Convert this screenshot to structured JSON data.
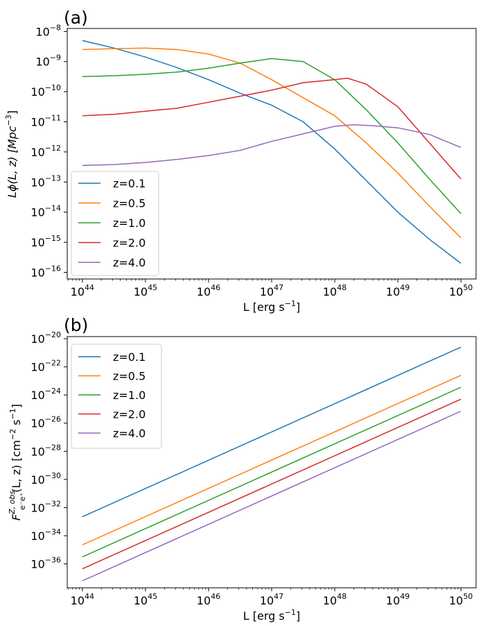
{
  "colors": {
    "z=0.1": "#1f77b4",
    "z=0.5": "#ff7f0e",
    "z=1.0": "#2ca02c",
    "z=2.0": "#d62728",
    "z=4.0": "#9467bd"
  },
  "chart_data": [
    {
      "type": "line",
      "panel_label": "(a)",
      "xscale": "log",
      "yscale": "log",
      "xlim_log10": [
        43.76,
        50.24
      ],
      "ylim_log10": [
        -16.22,
        -7.9
      ],
      "x_tick_exponents": [
        44,
        45,
        46,
        47,
        48,
        49,
        50
      ],
      "y_tick_exponents": [
        -16,
        -15,
        -14,
        -13,
        -12,
        -11,
        -10,
        -9,
        -8
      ],
      "tick_base": "10",
      "xlabel": "L [erg s",
      "xlabel_sup": "−1",
      "xlabel_tail": "]",
      "ylabel_prefix": "Lϕ(L, z) [Mpc",
      "ylabel_sup": "−3",
      "ylabel_tail": "]",
      "legend_position": "lower-left",
      "series": [
        {
          "name": "z=0.1",
          "x_log10": [
            44,
            44.5,
            45,
            45.5,
            46,
            46.5,
            47,
            47.5,
            48,
            48.5,
            49,
            49.5,
            50
          ],
          "y_log10": [
            -8.3,
            -8.55,
            -8.85,
            -9.2,
            -9.6,
            -10.05,
            -10.45,
            -11.0,
            -11.9,
            -12.95,
            -14.0,
            -14.9,
            -15.7
          ]
        },
        {
          "name": "z=0.5",
          "x_log10": [
            44,
            44.5,
            45,
            45.5,
            46,
            46.5,
            47,
            47.5,
            48,
            48.5,
            49,
            49.5,
            50
          ],
          "y_log10": [
            -8.6,
            -8.57,
            -8.55,
            -8.6,
            -8.75,
            -9.05,
            -9.6,
            -10.2,
            -10.8,
            -11.7,
            -12.7,
            -13.8,
            -14.85
          ]
        },
        {
          "name": "z=1.0",
          "x_log10": [
            44,
            44.5,
            45,
            45.5,
            46,
            46.5,
            47,
            47.5,
            48,
            48.5,
            49,
            49.5,
            50
          ],
          "y_log10": [
            -9.5,
            -9.47,
            -9.42,
            -9.35,
            -9.22,
            -9.05,
            -8.9,
            -9.0,
            -9.6,
            -10.6,
            -11.7,
            -12.9,
            -14.05
          ]
        },
        {
          "name": "z=2.0",
          "x_log10": [
            44,
            44.5,
            45,
            45.5,
            46,
            46.5,
            47,
            47.5,
            48,
            48.2,
            48.5,
            49,
            49.5,
            50
          ],
          "y_log10": [
            -10.8,
            -10.75,
            -10.65,
            -10.55,
            -10.35,
            -10.15,
            -9.95,
            -9.7,
            -9.6,
            -9.55,
            -9.75,
            -10.5,
            -11.7,
            -12.9
          ]
        },
        {
          "name": "z=4.0",
          "x_log10": [
            44,
            44.5,
            45,
            45.5,
            46,
            46.5,
            47,
            47.5,
            48,
            48.3,
            48.6,
            49,
            49.5,
            50
          ],
          "y_log10": [
            -12.45,
            -12.42,
            -12.35,
            -12.25,
            -12.12,
            -11.95,
            -11.65,
            -11.4,
            -11.15,
            -11.1,
            -11.13,
            -11.2,
            -11.42,
            -11.85
          ]
        }
      ]
    },
    {
      "type": "line",
      "panel_label": "(b)",
      "xscale": "log",
      "yscale": "log",
      "xlim_log10": [
        43.76,
        50.24
      ],
      "ylim_log10": [
        -37.7,
        -19.85
      ],
      "x_tick_exponents": [
        44,
        45,
        46,
        47,
        48,
        49,
        50
      ],
      "y_tick_exponents": [
        -36,
        -34,
        -32,
        -30,
        -28,
        -26,
        -24,
        -22,
        -20
      ],
      "tick_base": "10",
      "xlabel": "L [erg s",
      "xlabel_sup": "−1",
      "xlabel_tail": "]",
      "ylabel_main": "F",
      "ylabel_sup": "Z, obs",
      "ylabel_sub": "e⁻e⁺",
      "ylabel_rest": "(L, z) [cm",
      "ylabel_sup2": "−2",
      "ylabel_mid": " s",
      "ylabel_sup3": "−1",
      "ylabel_tail": "]",
      "legend_position": "upper-left",
      "series": [
        {
          "name": "z=0.1",
          "x_log10": [
            44,
            50
          ],
          "y_log10": [
            -32.65,
            -20.6
          ]
        },
        {
          "name": "z=0.5",
          "x_log10": [
            44,
            50
          ],
          "y_log10": [
            -34.65,
            -22.6
          ]
        },
        {
          "name": "z=1.0",
          "x_log10": [
            44,
            50
          ],
          "y_log10": [
            -35.5,
            -23.45
          ]
        },
        {
          "name": "z=2.0",
          "x_log10": [
            44,
            50
          ],
          "y_log10": [
            -36.35,
            -24.3
          ]
        },
        {
          "name": "z=4.0",
          "x_log10": [
            44,
            50
          ],
          "y_log10": [
            -37.2,
            -25.15
          ]
        }
      ]
    }
  ]
}
